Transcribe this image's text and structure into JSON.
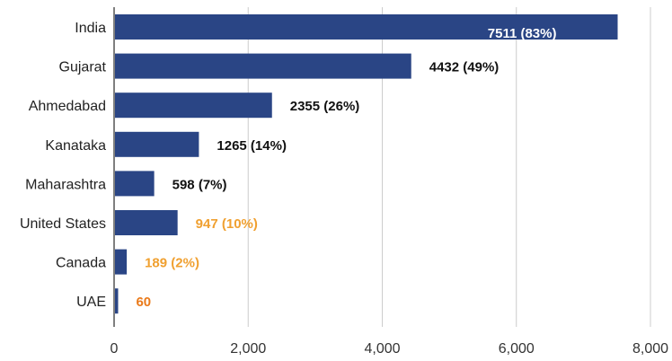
{
  "chart_data": {
    "type": "bar",
    "orientation": "horizontal",
    "categories": [
      "India",
      "Gujarat",
      "Ahmedabad",
      "Kanataka",
      "Maharashtra",
      "United States",
      "Canada",
      "UAE"
    ],
    "values": [
      7511,
      4432,
      2355,
      1265,
      598,
      947,
      189,
      60
    ],
    "data_labels": [
      "7511 (83%)",
      "4432 (49%)",
      "2355 (26%)",
      "1265 (14%)",
      "598 (7%)",
      "947 (10%)",
      "189 (2%)",
      "60"
    ],
    "label_colors": [
      "#ffffff",
      "#111111",
      "#111111",
      "#111111",
      "#111111",
      "#f0a030",
      "#f0a030",
      "#ea7a1a"
    ],
    "label_inside": [
      true,
      false,
      false,
      false,
      false,
      false,
      false,
      false
    ],
    "xticks": [
      0,
      2000,
      4000,
      6000,
      8000
    ],
    "xtick_labels": [
      "0",
      "2,000",
      "4,000",
      "6,000",
      "8,000"
    ],
    "xlim": [
      0,
      8000
    ],
    "bar_color": "#2a4585",
    "grid": true,
    "title": "",
    "xlabel": "",
    "ylabel": ""
  }
}
